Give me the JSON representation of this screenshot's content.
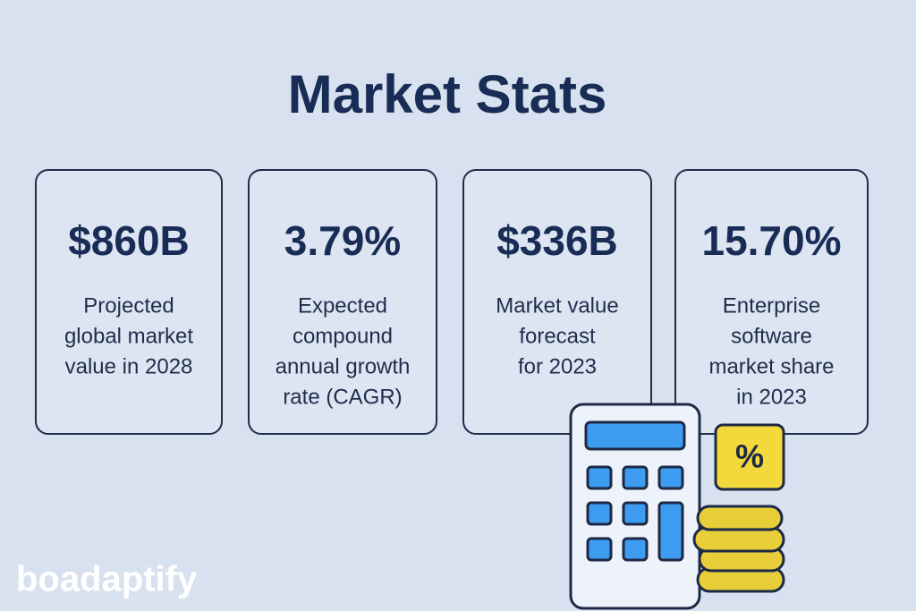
{
  "header": {
    "title": "Market Stats"
  },
  "cards": [
    {
      "value": "$860B",
      "description": [
        "Projected",
        "global market",
        "value in 2028"
      ]
    },
    {
      "value": "3.79%",
      "description": [
        "Expected",
        "compound",
        "annual growth",
        "rate (CAGR)"
      ]
    },
    {
      "value": "$336B",
      "description": [
        "Market value",
        "forecast",
        "for 2023"
      ]
    },
    {
      "value": "15.70%",
      "description": [
        "Enterprise",
        "software",
        "market share",
        "in 2023"
      ]
    }
  ],
  "illustration": {
    "badge": "%"
  },
  "logo": {
    "text": "boadaptify"
  }
}
